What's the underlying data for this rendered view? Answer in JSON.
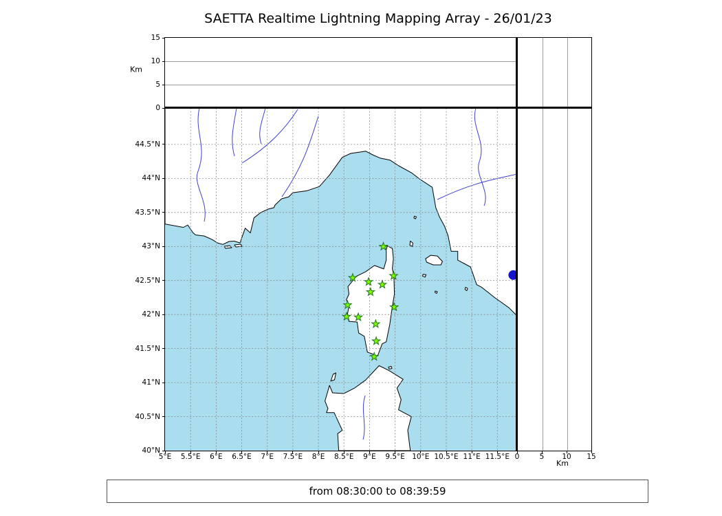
{
  "title": "SAETTA Realtime Lightning Mapping Array - 26/01/23",
  "footer": {
    "time_range": "from 08:30:00 to 08:39:59"
  },
  "altitude_axis_left": {
    "unit_label": "Km",
    "ticks": [
      "0",
      "5",
      "10",
      "15"
    ],
    "max_km": 15,
    "gridline_values_km": [
      5,
      10
    ]
  },
  "altitude_axis_right": {
    "unit_label": "Km",
    "ticks": [
      "0",
      "5",
      "10",
      "15"
    ],
    "max_km": 15,
    "gridline_values_km": [
      5,
      10
    ]
  },
  "map": {
    "lon_tick_labels": [
      "5°E",
      "5.5°E",
      "6°E",
      "6.5°E",
      "7°E",
      "7.5°E",
      "8°E",
      "8.5°E",
      "9°E",
      "9.5°E",
      "10°E",
      "10.5°E",
      "11°E",
      "11.5°E"
    ],
    "lat_tick_labels": [
      "44.5°N",
      "44°N",
      "43.5°N",
      "43°N",
      "42.5°N",
      "42°N",
      "41.5°N",
      "41°N",
      "40.5°N",
      "40°N"
    ],
    "lon_range": [
      5.0,
      11.885
    ],
    "lat_range": [
      40.0,
      45.035
    ],
    "colors": {
      "sea": "#aaddee",
      "land": "#ffffff",
      "coastline": "#000000",
      "river": "#4040cc",
      "grid": "#888888",
      "station_fill": "#7cfc00",
      "station_edge": "#207520",
      "event_marker": "#1414cc"
    },
    "stations": [
      {
        "lon": 9.27,
        "lat": 43.0
      },
      {
        "lon": 8.67,
        "lat": 42.54
      },
      {
        "lon": 8.98,
        "lat": 42.48
      },
      {
        "lon": 9.25,
        "lat": 42.44
      },
      {
        "lon": 9.47,
        "lat": 42.57
      },
      {
        "lon": 9.02,
        "lat": 42.33
      },
      {
        "lon": 8.57,
        "lat": 42.14
      },
      {
        "lon": 9.48,
        "lat": 42.11
      },
      {
        "lon": 8.55,
        "lat": 41.97
      },
      {
        "lon": 8.78,
        "lat": 41.96
      },
      {
        "lon": 9.12,
        "lat": 41.86
      },
      {
        "lon": 9.13,
        "lat": 41.61
      },
      {
        "lon": 9.09,
        "lat": 41.38
      }
    ],
    "event_marker": {
      "lon": 11.81,
      "lat": 42.58
    }
  }
}
